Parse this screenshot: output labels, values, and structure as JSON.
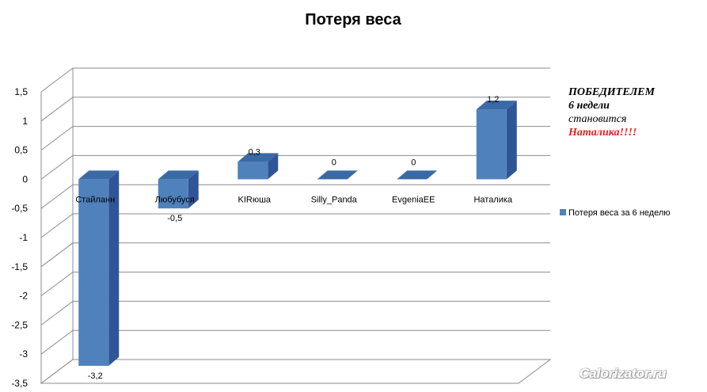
{
  "chart_data": {
    "type": "bar",
    "title": "Потеря веса",
    "categories": [
      "Стайланн",
      "Любубуся",
      "KIRюша",
      "Silly_Panda",
      "EvgeniaEE",
      "Наталика"
    ],
    "series": [
      {
        "name": "Потеря веса  за 6 неделю",
        "values": [
          -3.2,
          -0.5,
          0.3,
          0,
          0,
          1.2
        ],
        "color": "#4f81bd"
      }
    ],
    "data_labels": [
      "-3,2",
      "-0,5",
      "0,3",
      "0",
      "0",
      "1,2"
    ],
    "ylim": [
      -3.5,
      1.5
    ],
    "yticks": [
      1.5,
      1,
      0.5,
      0,
      -0.5,
      -1,
      -1.5,
      -2,
      -2.5,
      -3,
      -3.5
    ],
    "ytick_labels": [
      "1,5",
      "1",
      "0,5",
      "0",
      "-0,5",
      "-1",
      "-1,5",
      "-2",
      "-2,5",
      "-3",
      "-3,5"
    ],
    "grid": true,
    "legend": "right",
    "style": "3d-column"
  },
  "annotation": {
    "line1": "ПОБЕДИТЕЛЕМ",
    "line2": "6 недели",
    "line3": "становится",
    "line4": "Наталика!!!!"
  },
  "watermark": "Calorizator.ru"
}
